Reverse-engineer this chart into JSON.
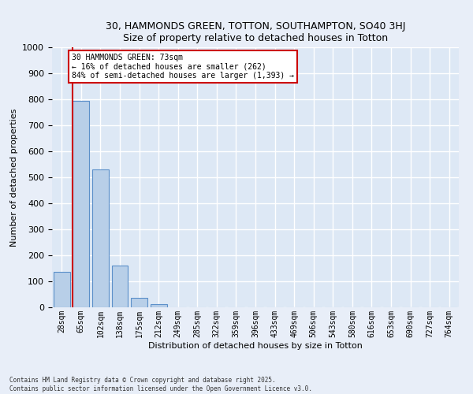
{
  "title": "30, HAMMONDS GREEN, TOTTON, SOUTHAMPTON, SO40 3HJ",
  "subtitle": "Size of property relative to detached houses in Totton",
  "xlabel": "Distribution of detached houses by size in Totton",
  "ylabel": "Number of detached properties",
  "categories": [
    "28sqm",
    "65sqm",
    "102sqm",
    "138sqm",
    "175sqm",
    "212sqm",
    "249sqm",
    "285sqm",
    "322sqm",
    "359sqm",
    "396sqm",
    "433sqm",
    "469sqm",
    "506sqm",
    "543sqm",
    "580sqm",
    "616sqm",
    "653sqm",
    "690sqm",
    "727sqm",
    "764sqm"
  ],
  "values": [
    135,
    795,
    530,
    160,
    37,
    12,
    0,
    0,
    0,
    0,
    0,
    0,
    0,
    0,
    0,
    0,
    0,
    0,
    0,
    0,
    0
  ],
  "bar_color": "#b8cfe8",
  "bar_edge_color": "#5b8fc9",
  "background_color": "#dde8f5",
  "fig_background_color": "#e8eef8",
  "grid_color": "#c8d8ee",
  "ylim": [
    0,
    1000
  ],
  "yticks": [
    0,
    100,
    200,
    300,
    400,
    500,
    600,
    700,
    800,
    900,
    1000
  ],
  "property_line_color": "#cc0000",
  "annotation_text": "30 HAMMONDS GREEN: 73sqm\n← 16% of detached houses are smaller (262)\n84% of semi-detached houses are larger (1,393) →",
  "annotation_box_edgecolor": "#cc0000",
  "footer_line1": "Contains HM Land Registry data © Crown copyright and database right 2025.",
  "footer_line2": "Contains public sector information licensed under the Open Government Licence v3.0."
}
